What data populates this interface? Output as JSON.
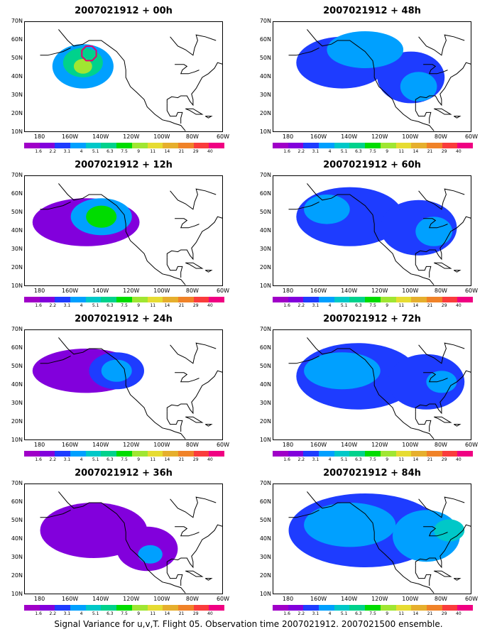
{
  "panels": [
    {
      "title": "2007021912 + 00h",
      "blobs": [
        {
          "cx": -152,
          "cy": 46,
          "rx": 20,
          "ry": 12,
          "lv": 3
        },
        {
          "cx": -152,
          "cy": 48,
          "rx": 13,
          "ry": 8,
          "lv": 5
        },
        {
          "cx": -152,
          "cy": 46,
          "rx": 6,
          "ry": 4,
          "lv": 7
        }
      ],
      "marker": {
        "lon": -148,
        "lat": 53
      }
    },
    {
      "title": "2007021912 + 48h",
      "blobs": [
        {
          "cx": -145,
          "cy": 48,
          "rx": 30,
          "ry": 14,
          "lv": 2
        },
        {
          "cx": -100,
          "cy": 40,
          "rx": 22,
          "ry": 14,
          "lv": 2
        },
        {
          "cx": -130,
          "cy": 55,
          "rx": 25,
          "ry": 10,
          "lv": 3
        },
        {
          "cx": -95,
          "cy": 35,
          "rx": 12,
          "ry": 8,
          "lv": 3
        }
      ]
    },
    {
      "title": "2007021912 + 12h",
      "blobs": [
        {
          "cx": -150,
          "cy": 45,
          "rx": 35,
          "ry": 13,
          "lv": 1
        },
        {
          "cx": -140,
          "cy": 48,
          "rx": 20,
          "ry": 10,
          "lv": 3
        },
        {
          "cx": -140,
          "cy": 48,
          "rx": 10,
          "ry": 6,
          "lv": 6
        }
      ]
    },
    {
      "title": "2007021912 + 60h",
      "blobs": [
        {
          "cx": -140,
          "cy": 48,
          "rx": 35,
          "ry": 16,
          "lv": 2
        },
        {
          "cx": -95,
          "cy": 42,
          "rx": 25,
          "ry": 15,
          "lv": 2
        },
        {
          "cx": -155,
          "cy": 52,
          "rx": 15,
          "ry": 8,
          "lv": 3
        },
        {
          "cx": -85,
          "cy": 40,
          "rx": 12,
          "ry": 8,
          "lv": 3
        }
      ]
    },
    {
      "title": "2007021912 + 24h",
      "blobs": [
        {
          "cx": -150,
          "cy": 48,
          "rx": 35,
          "ry": 12,
          "lv": 1
        },
        {
          "cx": -130,
          "cy": 48,
          "rx": 18,
          "ry": 10,
          "lv": 2
        },
        {
          "cx": -130,
          "cy": 48,
          "rx": 10,
          "ry": 6,
          "lv": 3
        }
      ]
    },
    {
      "title": "2007021912 + 72h",
      "blobs": [
        {
          "cx": -135,
          "cy": 45,
          "rx": 40,
          "ry": 18,
          "lv": 2
        },
        {
          "cx": -90,
          "cy": 42,
          "rx": 25,
          "ry": 15,
          "lv": 2
        },
        {
          "cx": -145,
          "cy": 48,
          "rx": 25,
          "ry": 10,
          "lv": 3
        },
        {
          "cx": -80,
          "cy": 42,
          "rx": 10,
          "ry": 6,
          "lv": 3
        }
      ]
    },
    {
      "title": "2007021912 + 36h",
      "blobs": [
        {
          "cx": -145,
          "cy": 45,
          "rx": 35,
          "ry": 15,
          "lv": 1
        },
        {
          "cx": -110,
          "cy": 35,
          "rx": 20,
          "ry": 12,
          "lv": 1
        },
        {
          "cx": -108,
          "cy": 32,
          "rx": 8,
          "ry": 5,
          "lv": 3
        }
      ]
    },
    {
      "title": "2007021912 + 84h",
      "blobs": [
        {
          "cx": -130,
          "cy": 45,
          "rx": 50,
          "ry": 20,
          "lv": 2
        },
        {
          "cx": -140,
          "cy": 48,
          "rx": 30,
          "ry": 12,
          "lv": 3
        },
        {
          "cx": -90,
          "cy": 42,
          "rx": 22,
          "ry": 14,
          "lv": 3
        },
        {
          "cx": -75,
          "cy": 45,
          "rx": 10,
          "ry": 6,
          "lv": 4
        }
      ]
    }
  ],
  "lat_labels": [
    "70N",
    "60N",
    "50N",
    "40N",
    "30N",
    "20N",
    "10N"
  ],
  "lon_labels": [
    "180",
    "160W",
    "140W",
    "120W",
    "100W",
    "80W",
    "60W"
  ],
  "colorbar": {
    "colors": [
      "#a000c8",
      "#8200dc",
      "#1e3cff",
      "#00a0ff",
      "#00c8c8",
      "#00d28c",
      "#00dc00",
      "#a0e632",
      "#e6dc32",
      "#e6af2d",
      "#f08228",
      "#fa3c3c",
      "#f00082"
    ],
    "labels": [
      "1.6",
      "2.2",
      "3.1",
      "4",
      "5.1",
      "6.3",
      "7.5",
      "9",
      "11",
      "14",
      "21",
      "29",
      "40"
    ]
  },
  "caption": "Signal Variance for u,v,T. Flight 05. Observation time 2007021912. 2007021500 ensemble."
}
